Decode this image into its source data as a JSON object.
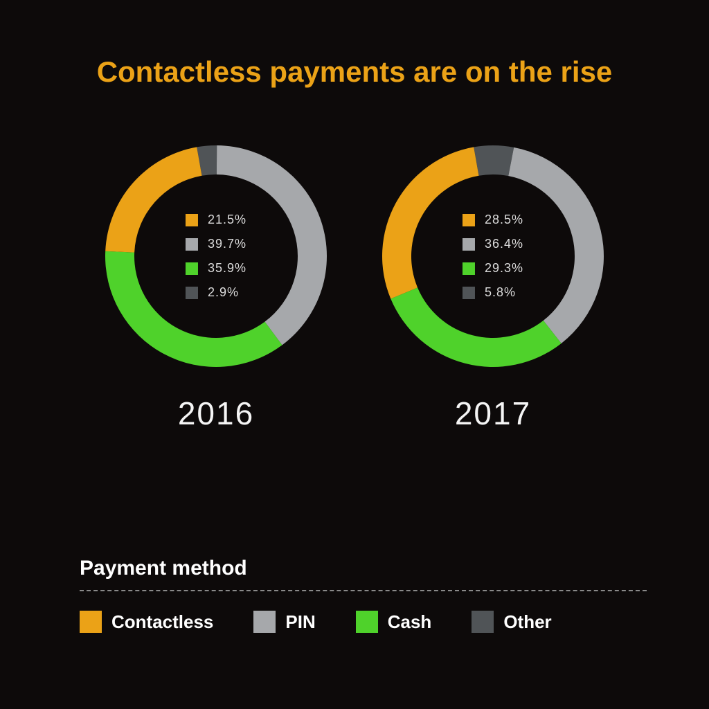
{
  "title": "Contactless payments are on the rise",
  "title_color": "#eba217",
  "background_color": "#0d0a0a",
  "text_color": "#ffffff",
  "value_text_color": "#dcdcdc",
  "dash_color": "#8a8a8a",
  "ring": {
    "outer_radius": 160,
    "inner_radius": 118,
    "start_angle_deg": -10
  },
  "categories": [
    {
      "key": "contactless",
      "label": "Contactless",
      "color": "#eba217"
    },
    {
      "key": "pin",
      "label": "PIN",
      "color": "#a6a8ab"
    },
    {
      "key": "cash",
      "label": "Cash",
      "color": "#4fd22b"
    },
    {
      "key": "other",
      "label": "Other",
      "color": "#505457"
    }
  ],
  "charts": [
    {
      "year": "2016",
      "draw_order": [
        "other",
        "pin",
        "cash",
        "contactless"
      ],
      "values": {
        "contactless": 21.5,
        "pin": 39.7,
        "cash": 35.9,
        "other": 2.9
      },
      "labels": {
        "contactless": "21.5%",
        "pin": "39.7%",
        "cash": "35.9%",
        "other": "2.9%"
      }
    },
    {
      "year": "2017",
      "draw_order": [
        "other",
        "pin",
        "cash",
        "contactless"
      ],
      "values": {
        "contactless": 28.5,
        "pin": 36.4,
        "cash": 29.3,
        "other": 5.8
      },
      "labels": {
        "contactless": "28.5%",
        "pin": "36.4%",
        "cash": "29.3%",
        "other": "5.8%"
      }
    }
  ],
  "method_section": {
    "title": "Payment method"
  },
  "typography": {
    "title_fontsize": 42,
    "year_fontsize": 46,
    "value_fontsize": 18,
    "legend_fontsize": 26,
    "method_title_fontsize": 30
  }
}
